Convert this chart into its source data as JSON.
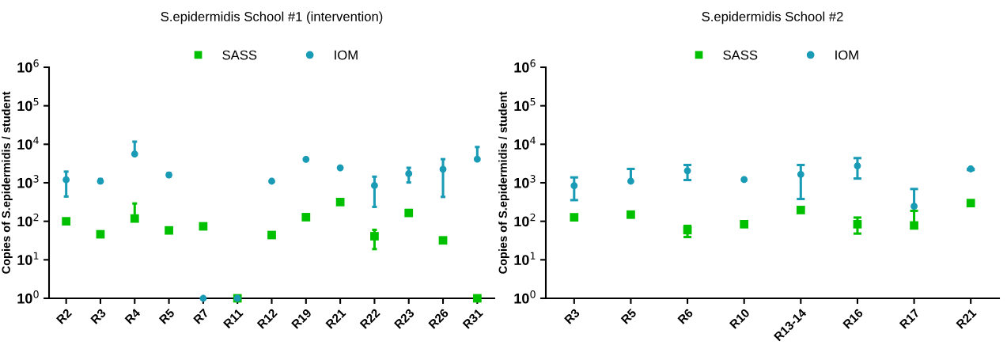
{
  "chart_data": [
    {
      "type": "scatter",
      "title": "S.epidermidis School #1 (intervention)",
      "ylabel": "Copies of S.epidermidis / student",
      "categories": [
        "R2",
        "R3",
        "R4",
        "R5",
        "R7",
        "R11",
        "R12",
        "R19",
        "R21",
        "R22",
        "R23",
        "R26",
        "R31"
      ],
      "series": [
        {
          "name": "SASS",
          "color": "#00c000",
          "marker": "square",
          "values": [
            100,
            46,
            118,
            58,
            74,
            1,
            44,
            128,
            316,
            41,
            165,
            32,
            1
          ],
          "errors": [
            null,
            null,
            [
              118,
              290
            ],
            null,
            null,
            null,
            null,
            null,
            null,
            [
              19,
              60
            ],
            null,
            null,
            null
          ]
        },
        {
          "name": "IOM",
          "color": "#1a9bb5",
          "marker": "circle",
          "values": [
            1200,
            1100,
            5600,
            1600,
            1,
            1,
            1100,
            4070,
            2450,
            850,
            1730,
            2250,
            4100
          ],
          "errors": [
            [
              440,
              1950
            ],
            [
              1000,
              1250
            ],
            [
              5600,
              11700
            ],
            [
              1450,
              1800
            ],
            null,
            null,
            null,
            null,
            null,
            [
              237,
              1440
            ],
            [
              1020,
              2450
            ],
            [
              430,
              4100
            ],
            [
              4100,
              8500
            ]
          ]
        }
      ],
      "log": "y",
      "ylim": [
        1,
        1000000
      ],
      "yticks": [
        {
          "value": 1,
          "label": "10$^{0}$"
        },
        {
          "value": 10,
          "label": "10$^{1}$"
        },
        {
          "value": 100,
          "label": "10$^{2}$"
        },
        {
          "value": 1000,
          "label": "10$^{3}$"
        },
        {
          "value": 10000,
          "label": "10$^{4}$"
        },
        {
          "value": 100000,
          "label": "10$^{5}$"
        },
        {
          "value": 1000000,
          "label": "10$^{6}$"
        }
      ],
      "legend": "top",
      "grid": false
    },
    {
      "type": "scatter",
      "title": "S.epidermidis School #2",
      "ylabel": "Copies of S.epidermidis / student",
      "categories": [
        "R3",
        "R5",
        "R6",
        "R10",
        "R13-14",
        "R16",
        "R17",
        "R21"
      ],
      "series": [
        {
          "name": "SASS",
          "color": "#00c000",
          "marker": "square",
          "values": [
            127,
            149,
            59,
            84,
            196,
            84,
            78,
            297
          ],
          "errors": [
            null,
            null,
            [
              39,
              76
            ],
            null,
            null,
            [
              48,
              125
            ],
            [
              78,
              187
            ],
            null
          ]
        },
        {
          "name": "IOM",
          "color": "#1a9bb5",
          "marker": "circle",
          "values": [
            840,
            1100,
            2050,
            1210,
            1660,
            2750,
            245,
            2290
          ],
          "errors": [
            [
              355,
              1380
            ],
            [
              1100,
              2290
            ],
            [
              1180,
              2900
            ],
            null,
            [
              380,
              2900
            ],
            [
              1290,
              4380
            ],
            [
              245,
              690
            ],
            [
              2150,
              2300
            ]
          ]
        }
      ],
      "log": "y",
      "ylim": [
        1,
        1000000
      ],
      "yticks": [
        {
          "value": 1,
          "label": "10$^{0}$"
        },
        {
          "value": 10,
          "label": "10$^{1}$"
        },
        {
          "value": 100,
          "label": "10$^{2}$"
        },
        {
          "value": 1000,
          "label": "10$^{3}$"
        },
        {
          "value": 10000,
          "label": "10$^{4}$"
        },
        {
          "value": 100000,
          "label": "10$^{5}$"
        },
        {
          "value": 1000000,
          "label": "10$^{6}$"
        }
      ],
      "legend": "top",
      "grid": false
    }
  ]
}
